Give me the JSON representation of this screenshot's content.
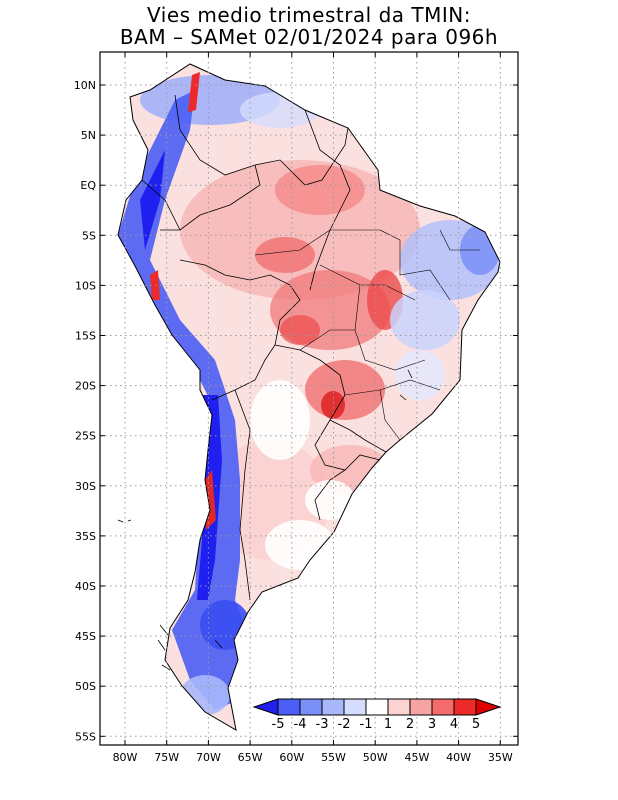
{
  "title_line1": "Vies medio trimestral da TMIN:",
  "title_line2": "BAM – SAMet 02/01/2024  para 096h",
  "lat_labels": [
    "10N",
    "5N",
    "EQ",
    "5S",
    "10S",
    "15S",
    "20S",
    "25S",
    "30S",
    "35S",
    "40S",
    "45S",
    "50S",
    "55S"
  ],
  "lon_labels": [
    "80W",
    "75W",
    "70W",
    "65W",
    "60W",
    "55W",
    "50W",
    "45W",
    "40W",
    "35W"
  ],
  "colorbar": {
    "labels": [
      "-5",
      "-4",
      "-3",
      "-2",
      "-1",
      "1",
      "2",
      "3",
      "4",
      "5"
    ],
    "colors": [
      "#1f1ff0",
      "#4b5ef5",
      "#7b8ff8",
      "#a9b8fb",
      "#d6dcfd",
      "#ffffff",
      "#fcd2d2",
      "#f8a3a3",
      "#f56b6b",
      "#ec2a2a",
      "#e00000"
    ]
  }
}
